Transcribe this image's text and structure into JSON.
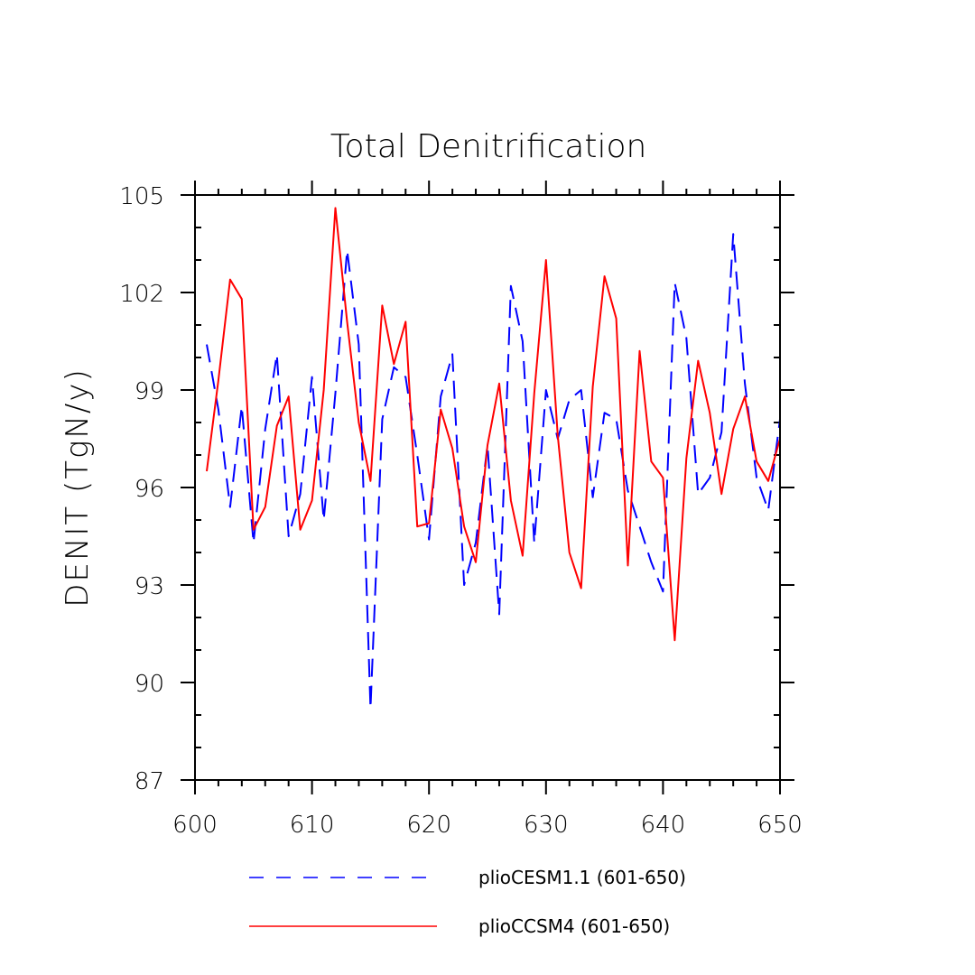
{
  "chart_data": {
    "type": "line",
    "title": "Total Denitrification",
    "xlabel": "",
    "ylabel": "DENIT  (TgN/y)",
    "xlim": [
      600,
      650
    ],
    "ylim": [
      87,
      105
    ],
    "xticks": [
      600,
      610,
      620,
      630,
      640,
      650
    ],
    "yticks": [
      87,
      90,
      93,
      96,
      99,
      102,
      105
    ],
    "grid": false,
    "legend_position": "bottom",
    "x": [
      601,
      602,
      603,
      604,
      605,
      606,
      607,
      608,
      609,
      610,
      611,
      612,
      613,
      614,
      615,
      616,
      617,
      618,
      619,
      620,
      621,
      622,
      623,
      624,
      625,
      626,
      627,
      628,
      629,
      630,
      631,
      632,
      633,
      634,
      635,
      636,
      637,
      638,
      639,
      640,
      641,
      642,
      643,
      644,
      645,
      646,
      647,
      648,
      649,
      650
    ],
    "series": [
      {
        "name": "plioCESM1.1 (601-650)",
        "color": "#0000ff",
        "style": "dashed",
        "values": [
          100.4,
          98.4,
          95.4,
          98.5,
          94.3,
          97.8,
          100.1,
          94.5,
          95.8,
          99.4,
          95.0,
          98.9,
          103.3,
          100.4,
          89.2,
          98.1,
          99.7,
          99.4,
          97.0,
          94.4,
          98.8,
          100.1,
          93.0,
          94.3,
          97.3,
          92.1,
          102.2,
          100.5,
          94.3,
          99.0,
          97.5,
          98.7,
          99.0,
          95.7,
          98.3,
          98.1,
          95.9,
          94.8,
          93.7,
          92.8,
          102.3,
          100.6,
          95.8,
          96.3,
          97.7,
          103.8,
          99.2,
          96.3,
          95.3,
          98.1
        ]
      },
      {
        "name": "plioCCSM4 (601-650)",
        "color": "#ff0000",
        "style": "solid",
        "values": [
          96.5,
          99.3,
          102.4,
          101.8,
          94.7,
          95.4,
          97.9,
          98.8,
          94.7,
          95.6,
          99.0,
          104.6,
          101.1,
          98.0,
          96.2,
          101.6,
          99.8,
          101.1,
          94.8,
          94.9,
          98.4,
          97.2,
          94.8,
          93.7,
          97.3,
          99.2,
          95.6,
          93.9,
          98.9,
          103.0,
          97.6,
          94.0,
          92.9,
          99.1,
          102.5,
          101.2,
          93.6,
          100.2,
          96.8,
          96.3,
          91.3,
          96.9,
          99.9,
          98.3,
          95.8,
          97.8,
          98.8,
          96.8,
          96.2,
          97.5
        ]
      }
    ]
  }
}
